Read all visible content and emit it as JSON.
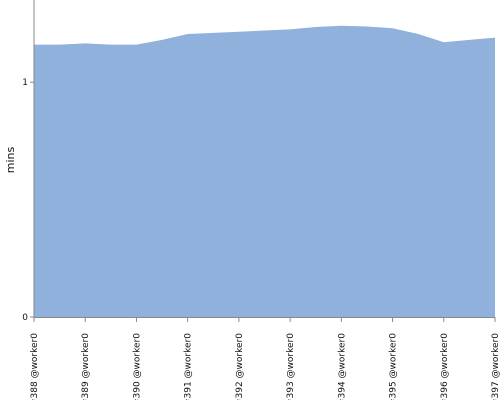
{
  "chart_data": {
    "type": "area",
    "title": "",
    "xlabel": "",
    "ylabel": "mins",
    "ylim": [
      0,
      1.35
    ],
    "yticks": [
      {
        "value": 0,
        "label": "0"
      },
      {
        "value": 1,
        "label": "1"
      }
    ],
    "grid": "dotted horizontal at y=1",
    "legend": "none",
    "colors": {
      "area_fill": "#8fb1db",
      "axis": "#888888",
      "grid": "#8a9ab8"
    },
    "x_labels": [
      "#388 @worker0",
      "#389 @worker0",
      "#390 @worker0",
      "#391 @worker0",
      "#392 @worker0",
      "#393 @worker0",
      "#394 @worker0",
      "#395 @worker0",
      "#396 @worker0",
      "#397 @worker0"
    ],
    "series": [
      {
        "values": [
          {
            "x": 0.0,
            "y": 1.16
          },
          {
            "x": 0.5,
            "y": 1.16
          },
          {
            "x": 1.0,
            "y": 1.165
          },
          {
            "x": 1.5,
            "y": 1.16
          },
          {
            "x": 2.0,
            "y": 1.16
          },
          {
            "x": 2.5,
            "y": 1.18
          },
          {
            "x": 3.0,
            "y": 1.205
          },
          {
            "x": 3.5,
            "y": 1.21
          },
          {
            "x": 4.0,
            "y": 1.215
          },
          {
            "x": 4.5,
            "y": 1.22
          },
          {
            "x": 5.0,
            "y": 1.225
          },
          {
            "x": 5.5,
            "y": 1.235
          },
          {
            "x": 6.0,
            "y": 1.24
          },
          {
            "x": 6.5,
            "y": 1.237
          },
          {
            "x": 7.0,
            "y": 1.23
          },
          {
            "x": 7.5,
            "y": 1.205
          },
          {
            "x": 8.0,
            "y": 1.17
          },
          {
            "x": 8.5,
            "y": 1.18
          },
          {
            "x": 9.0,
            "y": 1.19
          }
        ]
      }
    ]
  }
}
